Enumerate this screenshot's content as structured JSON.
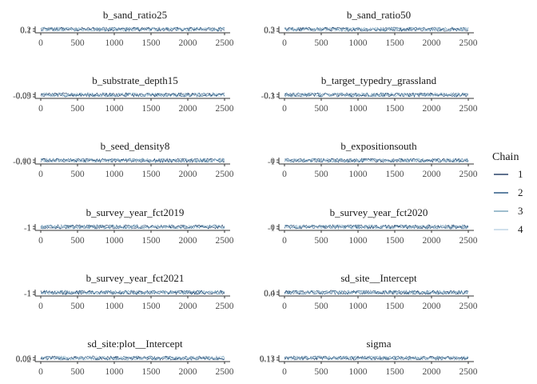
{
  "chart_data": {
    "type": "line",
    "description_of_layout": "2-column grid of MCMC trace plots",
    "x_ticks": [
      0,
      500,
      1000,
      1500,
      2000,
      2500
    ],
    "x_range": [
      0,
      2500
    ],
    "legend": {
      "title": "Chain",
      "placement": "right",
      "entries": [
        "1",
        "2",
        "3",
        "4"
      ],
      "colors": [
        "#011f4b",
        "#03396c",
        "#6497b1",
        "#b3cde0"
      ]
    },
    "panels": [
      {
        "title": "b_sand_ratio25",
        "y_labels": [
          "0.2",
          "0.1"
        ]
      },
      {
        "title": "b_sand_ratio50",
        "y_labels": [
          "0.3",
          "0.2"
        ]
      },
      {
        "title": "b_substrate_depth15",
        "y_labels": [
          "0.03",
          "-0.09"
        ]
      },
      {
        "title": "b_target_typedry_grassland",
        "y_labels": [
          "0.1",
          "-0.3"
        ]
      },
      {
        "title": "b_seed_density8",
        "y_labels": [
          "0.00",
          "-0.10"
        ]
      },
      {
        "title": "b_expositionsouth",
        "y_labels": [
          "0",
          "-1"
        ]
      },
      {
        "title": "b_survey_year_fct2019",
        "y_labels": [
          "1",
          "-1"
        ]
      },
      {
        "title": "b_survey_year_fct2020",
        "y_labels": [
          "0",
          "-1"
        ]
      },
      {
        "title": "b_survey_year_fct2021",
        "y_labels": [
          "1",
          "-1"
        ]
      },
      {
        "title": "sd_site__Intercept",
        "y_labels": [
          "0.4",
          "0.0"
        ]
      },
      {
        "title": "sd_site:plot__Intercept",
        "y_labels": [
          "0.06",
          "0.02"
        ]
      },
      {
        "title": "sigma",
        "y_labels": [
          "0.13",
          "0.11"
        ]
      }
    ]
  }
}
